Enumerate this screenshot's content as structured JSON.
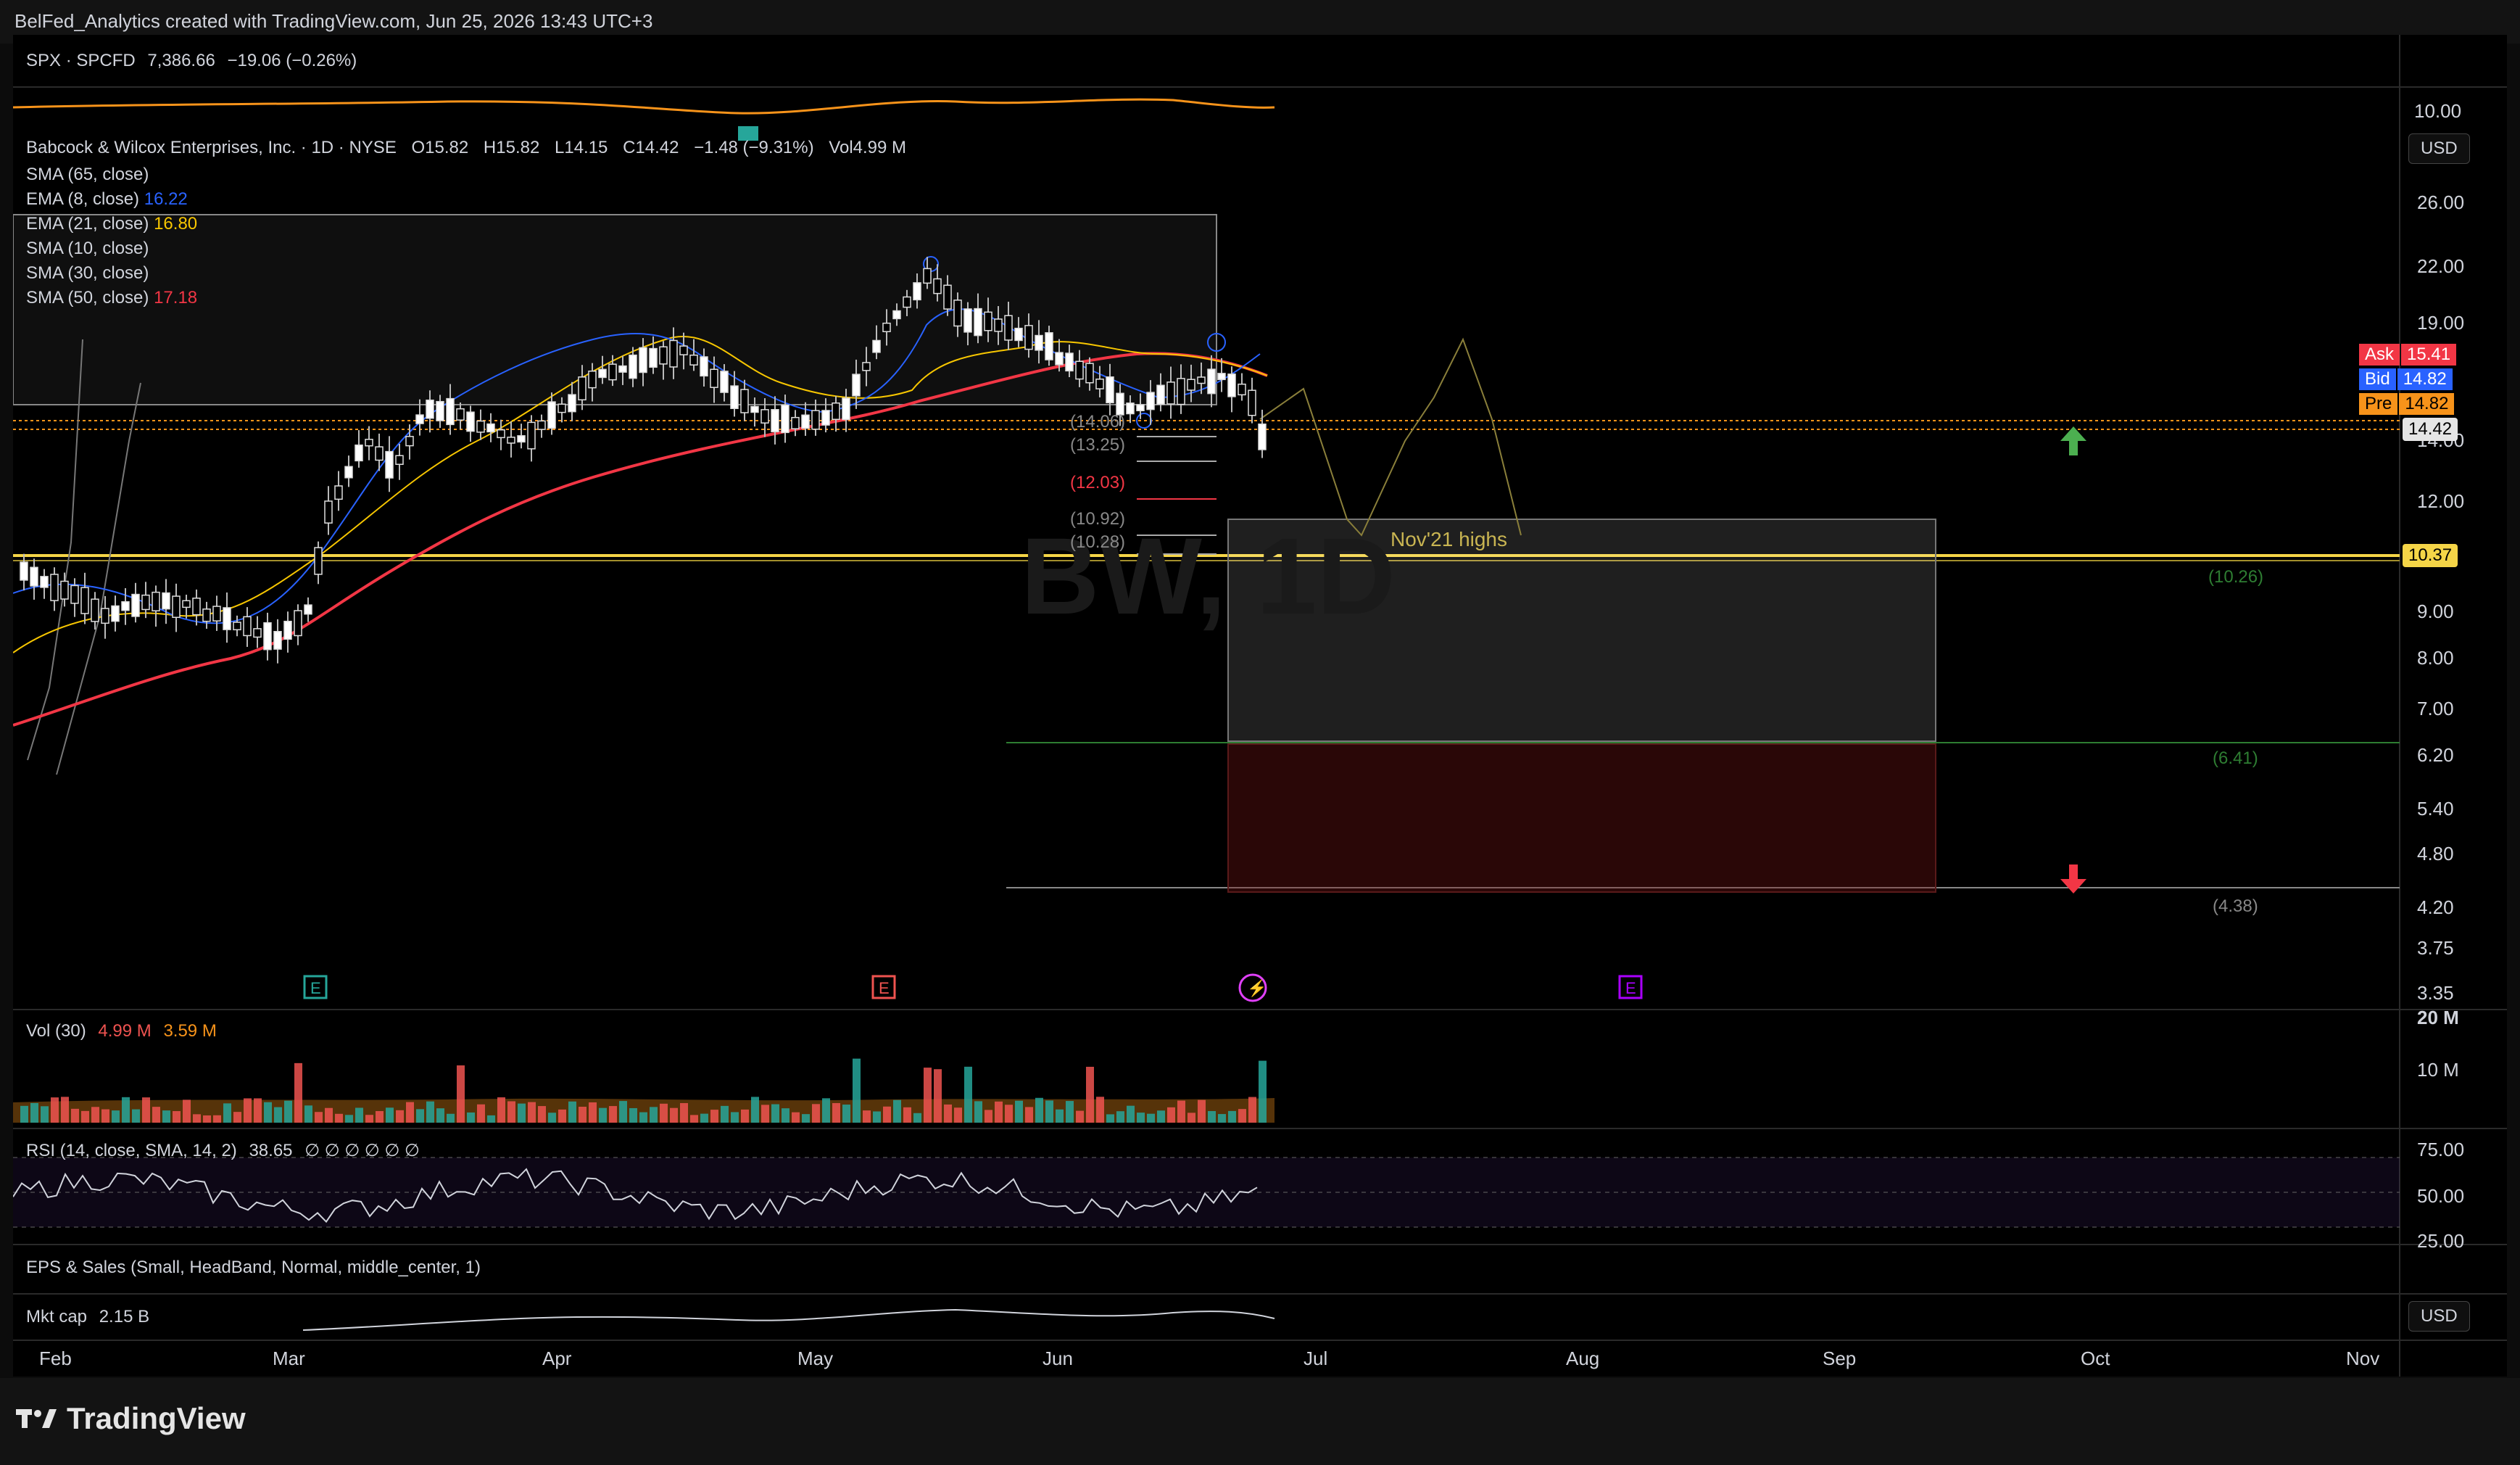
{
  "header": {
    "attribution": "BelFed_Analytics created with TradingView.com, Jun 25, 2026 13:43 UTC+3"
  },
  "spx": {
    "label": "SPX · SPCFD",
    "price": "7,386.66",
    "change": "−19.06 (−0.26%)",
    "axis": "10.00"
  },
  "symbol": {
    "title": "Babcock & Wilcox Enterprises, Inc. · 1D · NYSE",
    "open_label": "O",
    "open": "15.82",
    "high_label": "H",
    "high": "15.82",
    "low_label": "L",
    "low": "14.15",
    "close_label": "C",
    "close": "14.42",
    "change": "−1.48 (−9.31%)",
    "vol_label": "Vol",
    "vol": "4.99 M",
    "watermark": "BW, 1D"
  },
  "indicators": [
    {
      "label": "SMA (65, close)",
      "value": "",
      "color": "#2962ff"
    },
    {
      "label": "EMA (8, close)",
      "value": "16.22",
      "color": "#2962ff"
    },
    {
      "label": "EMA (21, close)",
      "value": "16.80",
      "color": "#f7c600"
    },
    {
      "label": "SMA (10, close)",
      "value": "",
      "color": "#d1d4dc"
    },
    {
      "label": "SMA (30, close)",
      "value": "",
      "color": "#d1d4dc"
    },
    {
      "label": "SMA (50, close)",
      "value": "17.18",
      "color": "#f23645"
    }
  ],
  "price_axis": [
    "26.00",
    "22.00",
    "19.00",
    "14.00",
    "12.00",
    "9.00",
    "8.00",
    "7.00",
    "6.20",
    "5.40",
    "4.80",
    "4.20",
    "3.75",
    "3.35"
  ],
  "quote_tags": {
    "ask_label": "Ask",
    "ask": "15.41",
    "bid_label": "Bid",
    "bid": "14.82",
    "pre_label": "Pre",
    "pre": "14.82",
    "last": "14.42",
    "level": "10.37"
  },
  "levels": {
    "l1": "(14.06)",
    "l2": "(13.25)",
    "l3": "(12.03)",
    "l4": "(10.92)",
    "l5": "(10.28)",
    "r1": "(10.26)",
    "r2": "(6.41)",
    "r3": "(4.38)"
  },
  "annotation": "Nov'21 highs",
  "currency": "USD",
  "volume_pane": {
    "label": "Vol (30)",
    "v1": "4.99 M",
    "v2": "3.59 M",
    "axis_top": "20 M",
    "axis_mid": "10 M"
  },
  "rsi_pane": {
    "label": "RSI (14, close, SMA, 14, 2)",
    "value": "38.65",
    "extras": "∅ ∅ ∅ ∅ ∅ ∅",
    "axis": [
      "75.00",
      "50.00",
      "25.00"
    ]
  },
  "eps_pane": {
    "label": "EPS & Sales (Small, HeadBand, Normal, middle_center, 1)"
  },
  "mktcap_pane": {
    "label": "Mkt cap",
    "value": "2.15 B"
  },
  "time_axis": [
    "Feb",
    "Mar",
    "Apr",
    "May",
    "Jun",
    "Jul",
    "Aug",
    "Sep",
    "Oct",
    "Nov"
  ],
  "footer": {
    "brand": "TradingView"
  },
  "colors": {
    "up": "#26a69a",
    "down": "#ef5350",
    "ema21": "#f7c600",
    "sma50": "#f23645",
    "ema8": "#2962ff",
    "accent_level": "#f5d547"
  }
}
